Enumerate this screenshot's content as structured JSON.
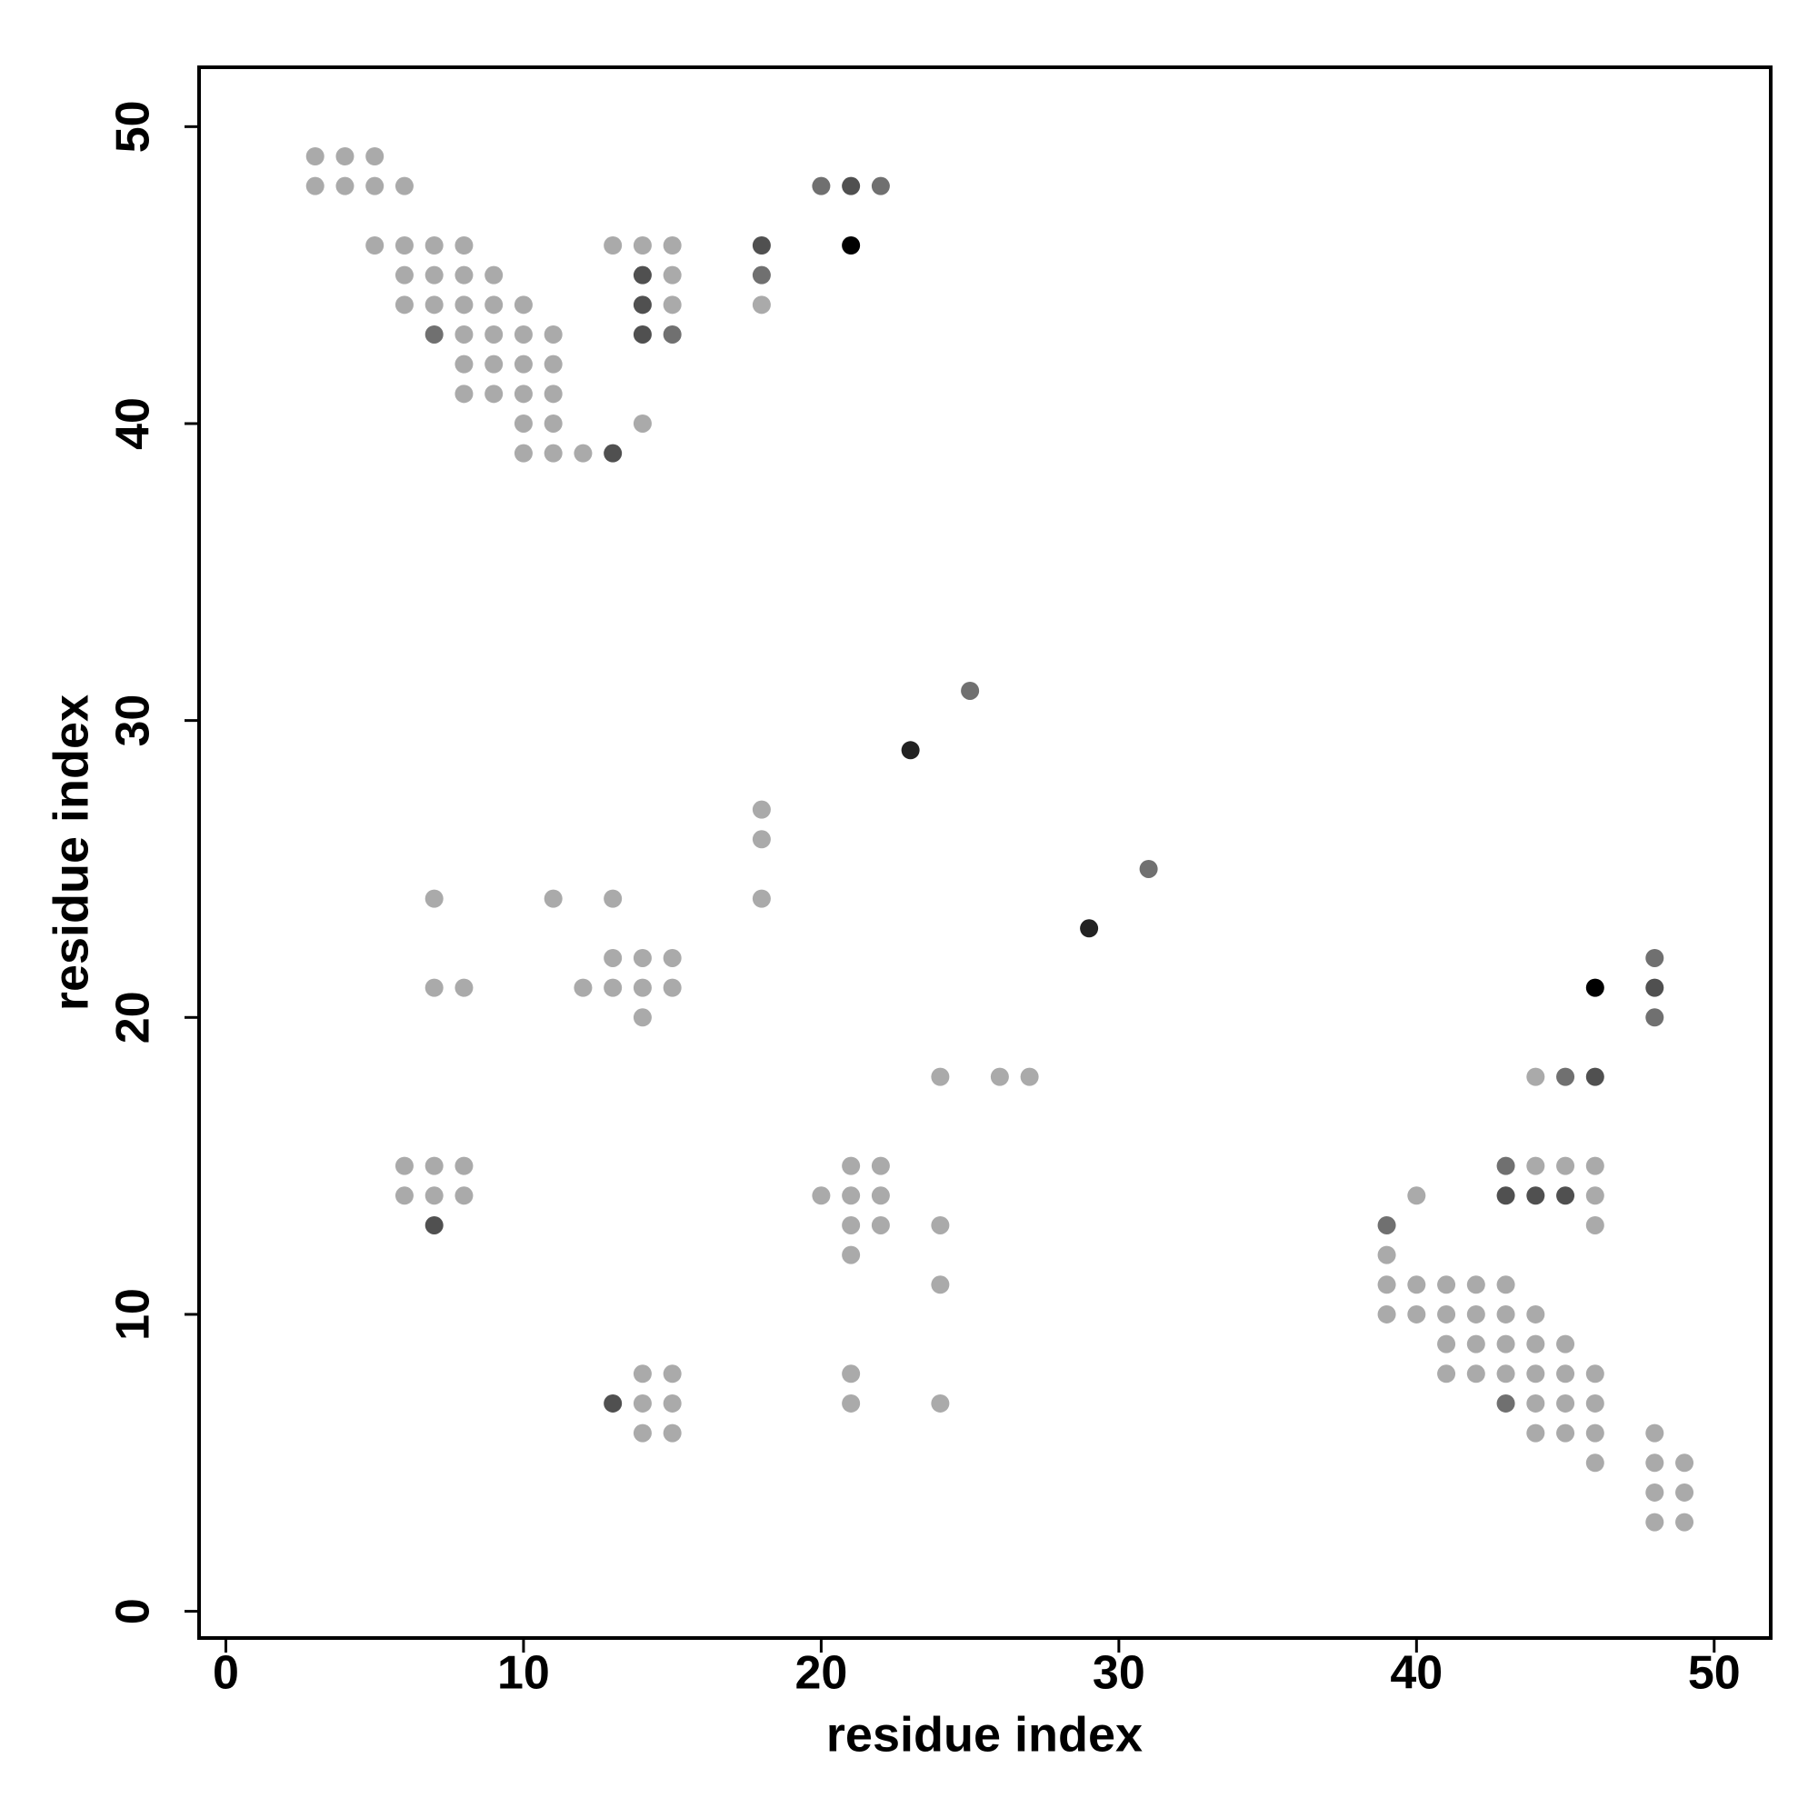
{
  "chart_data": {
    "type": "scatter",
    "xlabel": "residue index",
    "ylabel": "residue index",
    "xlim": [
      -0.9,
      51.9
    ],
    "ylim": [
      -0.9,
      52
    ],
    "xticks": [
      0,
      10,
      20,
      30,
      40,
      50
    ],
    "yticks": [
      0,
      10,
      20,
      30,
      40,
      50
    ],
    "grid": false,
    "series": [
      {
        "color": "#aaaaaa",
        "x": [
          3,
          4,
          5,
          3,
          4,
          5,
          6,
          5,
          6,
          7,
          8,
          13,
          14,
          15,
          6,
          7,
          8,
          9,
          15,
          6,
          7,
          8,
          9,
          10,
          15,
          18,
          8,
          9,
          10,
          11,
          8,
          9,
          10,
          11,
          8,
          9,
          10,
          11,
          10,
          11,
          14,
          10,
          11,
          12,
          18,
          18,
          7,
          11,
          13,
          18,
          13,
          14,
          15,
          7,
          8,
          12,
          13,
          14,
          15,
          14,
          24,
          26,
          27,
          44,
          6,
          7,
          8,
          21,
          22,
          44,
          45,
          46,
          6,
          7,
          8,
          20,
          21,
          22,
          40,
          46,
          21,
          22,
          24,
          46,
          21,
          39,
          24,
          39,
          40,
          41,
          42,
          43,
          39,
          40,
          41,
          42,
          43,
          44,
          41,
          42,
          43,
          44,
          45,
          14,
          15,
          21,
          41,
          42,
          43,
          44,
          45,
          46,
          14,
          15,
          21,
          24,
          44,
          45,
          46,
          14,
          15,
          44,
          45,
          46,
          48,
          46,
          48,
          49,
          48,
          49,
          48,
          49
        ],
        "y": [
          49,
          49,
          49,
          48,
          48,
          48,
          48,
          46,
          46,
          46,
          46,
          46,
          46,
          46,
          45,
          45,
          45,
          45,
          45,
          44,
          44,
          44,
          44,
          44,
          44,
          44,
          43,
          43,
          43,
          43,
          42,
          42,
          42,
          42,
          41,
          41,
          41,
          41,
          40,
          40,
          40,
          39,
          39,
          39,
          27,
          26,
          24,
          24,
          24,
          24,
          22,
          22,
          22,
          21,
          21,
          21,
          21,
          21,
          21,
          20,
          18,
          18,
          18,
          18,
          15,
          15,
          15,
          15,
          15,
          15,
          15,
          15,
          14,
          14,
          14,
          14,
          14,
          14,
          14,
          14,
          13,
          13,
          13,
          13,
          12,
          12,
          11,
          11,
          11,
          11,
          11,
          11,
          10,
          10,
          10,
          10,
          10,
          10,
          9,
          9,
          9,
          9,
          9,
          8,
          8,
          8,
          8,
          8,
          8,
          8,
          8,
          8,
          7,
          7,
          7,
          7,
          7,
          7,
          7,
          6,
          6,
          6,
          6,
          6,
          6,
          5,
          5,
          5,
          4,
          4,
          3,
          3
        ]
      },
      {
        "color": "#707070",
        "x": [
          20,
          22,
          18,
          7,
          15,
          25,
          31,
          48,
          48,
          45,
          43,
          39,
          43
        ],
        "y": [
          48,
          48,
          45,
          43,
          43,
          31,
          25,
          22,
          20,
          18,
          15,
          13,
          7
        ]
      },
      {
        "color": "#505050",
        "x": [
          21,
          18,
          14,
          14,
          14,
          13,
          48,
          46,
          43,
          44,
          45,
          7,
          13
        ],
        "y": [
          48,
          46,
          45,
          44,
          43,
          39,
          21,
          18,
          14,
          14,
          14,
          13,
          7
        ]
      },
      {
        "color": "#222222",
        "x": [
          23,
          29
        ],
        "y": [
          29,
          23
        ]
      },
      {
        "color": "#000000",
        "x": [
          21,
          46
        ],
        "y": [
          46,
          21
        ]
      }
    ]
  }
}
